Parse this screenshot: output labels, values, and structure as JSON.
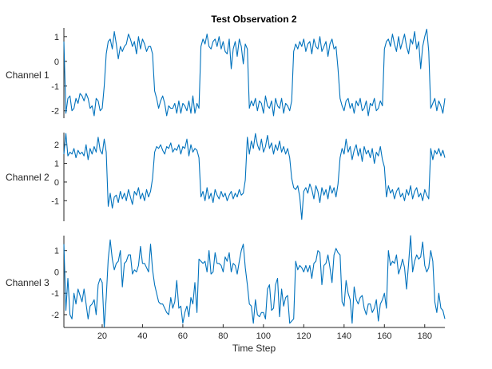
{
  "chart_data": {
    "type": "line",
    "title": "Test Observation 2",
    "xlabel": "Time Step",
    "xlim": [
      1,
      190
    ],
    "xticks": [
      20,
      40,
      60,
      80,
      100,
      120,
      140,
      160,
      180
    ],
    "grid": false,
    "line_color": "#0072BD",
    "x_start": 1,
    "series": [
      {
        "name": "Channel 1",
        "ylim": [
          -2.3,
          1.35
        ],
        "yticks": [
          -2,
          -1,
          0,
          1
        ],
        "values": [
          0.8,
          -2.1,
          -1.5,
          -1.4,
          -2.0,
          -1.9,
          -1.5,
          -1.7,
          -1.3,
          -1.4,
          -1.6,
          -1.3,
          -1.5,
          -1.9,
          -1.8,
          -2.2,
          -1.5,
          -1.6,
          -2.0,
          -1.9,
          -1.0,
          0.3,
          0.8,
          0.9,
          0.5,
          1.2,
          0.7,
          0.1,
          0.6,
          0.4,
          0.6,
          0.7,
          1.1,
          0.9,
          0.6,
          0.8,
          0.3,
          1.0,
          0.5,
          0.9,
          0.7,
          0.4,
          0.6,
          0.6,
          0.3,
          -1.2,
          -1.5,
          -1.9,
          -1.6,
          -1.4,
          -1.7,
          -2.2,
          -1.8,
          -1.9,
          -1.9,
          -1.7,
          -2.1,
          -1.6,
          -2.1,
          -1.7,
          -1.8,
          -2.0,
          -1.6,
          -2.1,
          -1.4,
          -2.1,
          -1.7,
          -1.9,
          0.6,
          0.9,
          0.7,
          1.1,
          0.6,
          0.5,
          0.8,
          0.9,
          0.6,
          1.0,
          0.5,
          0.8,
          0.4,
          0.3,
          0.9,
          -0.3,
          0.5,
          0.8,
          0.2,
          0.9,
          0.6,
          -0.1,
          0.7,
          0.5,
          -1.9,
          -1.6,
          -1.8,
          -1.5,
          -2.0,
          -1.6,
          -1.7,
          -2.1,
          -1.4,
          -1.8,
          -1.9,
          -1.6,
          -2.2,
          -1.5,
          -1.8,
          -1.9,
          -1.5,
          -2.1,
          -1.7,
          -1.8,
          -2.0,
          -1.6,
          0.4,
          0.7,
          0.5,
          0.8,
          0.6,
          0.9,
          0.4,
          0.7,
          0.8,
          0.3,
          0.9,
          0.6,
          0.5,
          1.0,
          0.4,
          0.6,
          0.8,
          0.2,
          0.7,
          0.9,
          0.5,
          0.6,
          -0.3,
          -1.5,
          -1.8,
          -2.0,
          -1.6,
          -1.5,
          -1.9,
          -1.7,
          -2.1,
          -1.6,
          -1.8,
          -1.5,
          -2.0,
          -1.9,
          -1.6,
          -2.2,
          -1.7,
          -1.8,
          -1.5,
          -2.0,
          -1.9,
          -1.6,
          -1.8,
          0.5,
          0.8,
          0.9,
          0.6,
          1.1,
          0.7,
          0.4,
          1.0,
          0.5,
          0.8,
          1.1,
          0.6,
          0.3,
          0.9,
          0.7,
          1.2,
          0.5,
          0.8,
          -0.3,
          0.6,
          1.0,
          1.3,
          0.4,
          -1.9,
          -1.7,
          -1.5,
          -2.0,
          -1.6,
          -1.8,
          -2.1,
          -1.5
        ]
      },
      {
        "name": "Channel 2",
        "ylim": [
          -2.1,
          2.65
        ],
        "yticks": [
          -1,
          0,
          1,
          2
        ],
        "values": [
          1.5,
          2.6,
          1.4,
          1.6,
          1.5,
          1.8,
          1.3,
          1.7,
          1.5,
          1.6,
          1.4,
          2.0,
          1.2,
          1.8,
          1.5,
          1.9,
          1.6,
          2.4,
          1.7,
          1.5,
          2.3,
          1.6,
          -1.3,
          -0.6,
          -1.4,
          -0.8,
          -0.7,
          -1.1,
          -0.5,
          -0.9,
          -0.6,
          -1.0,
          -0.4,
          -0.8,
          -1.2,
          -0.5,
          -0.7,
          -0.3,
          -0.9,
          -0.6,
          -1.0,
          -0.4,
          -0.8,
          -0.5,
          0.2,
          1.6,
          1.9,
          1.8,
          2.0,
          1.7,
          1.5,
          1.9,
          1.8,
          2.1,
          1.6,
          1.8,
          1.7,
          2.0,
          1.5,
          1.9,
          1.8,
          2.3,
          1.4,
          2.0,
          1.6,
          1.8,
          1.7,
          1.3,
          -0.8,
          -0.5,
          -1.0,
          -0.3,
          -0.9,
          -0.6,
          -1.1,
          -0.4,
          -0.7,
          -0.9,
          -0.5,
          -0.8,
          -0.6,
          -1.0,
          -0.7,
          -0.5,
          -0.9,
          -0.6,
          -0.8,
          -0.4,
          -0.7,
          -0.6,
          0.1,
          2.4,
          1.5,
          2.2,
          1.8,
          2.6,
          2.0,
          1.7,
          2.3,
          1.6,
          1.9,
          2.5,
          1.8,
          2.1,
          1.5,
          2.0,
          1.7,
          2.2,
          1.6,
          1.9,
          1.5,
          1.8,
          1.3,
          0.2,
          -0.3,
          -0.4,
          -0.2,
          -0.8,
          -2.0,
          -0.5,
          -0.3,
          -0.6,
          -0.1,
          -0.4,
          -0.9,
          -0.2,
          -0.5,
          -1.1,
          -0.3,
          -0.7,
          -0.4,
          -0.9,
          -0.2,
          -0.6,
          -0.3,
          -0.8,
          -0.1,
          1.3,
          1.8,
          1.5,
          2.3,
          1.6,
          1.9,
          1.2,
          1.7,
          2.0,
          1.4,
          1.8,
          1.1,
          1.9,
          1.5,
          1.7,
          1.3,
          1.8,
          1.0,
          1.6,
          1.4,
          1.9,
          1.2,
          0.8,
          -0.8,
          -0.2,
          -0.6,
          -0.4,
          -0.9,
          -0.5,
          -0.3,
          -0.8,
          -0.6,
          -1.0,
          -0.4,
          -0.7,
          -0.2,
          -0.9,
          -0.5,
          -0.3,
          -0.8,
          -0.6,
          -1.0,
          -0.4,
          -0.7,
          -0.9,
          1.8,
          1.2,
          1.7,
          1.5,
          1.8,
          1.4,
          1.7,
          1.3
        ]
      },
      {
        "name": "Channel 3",
        "ylim": [
          -2.6,
          1.7
        ],
        "yticks": [
          -2,
          -1,
          0,
          1
        ],
        "values": [
          1.3,
          -1.8,
          -0.3,
          -2.0,
          -2.2,
          -1.0,
          -1.5,
          -0.8,
          -1.1,
          -1.4,
          -0.8,
          -1.5,
          -2.2,
          -1.6,
          -1.5,
          -1.3,
          -2.0,
          -0.6,
          -0.3,
          -0.5,
          -2.6,
          -1.2,
          0.6,
          1.5,
          0.6,
          0.1,
          0.4,
          0.5,
          1.0,
          -0.7,
          0.4,
          0.5,
          0.8,
          0.8,
          -0.1,
          0.1,
          0.0,
          0.3,
          1.2,
          0.4,
          0.4,
          0.2,
          0.0,
          1.3,
          0.1,
          -0.6,
          -1.0,
          -1.4,
          -1.5,
          -1.5,
          -1.7,
          -1.9,
          -2.0,
          -1.2,
          -1.7,
          -1.4,
          -0.4,
          -1.7,
          -1.6,
          -2.4,
          -1.9,
          -1.6,
          -2.1,
          -1.2,
          -1.5,
          -0.5,
          -1.9,
          0.6,
          0.5,
          0.4,
          0.5,
          0.0,
          1.0,
          -0.1,
          0.0,
          0.9,
          0.4,
          0.4,
          0.3,
          0.0,
          0.7,
          0.5,
          0.9,
          0.0,
          0.4,
          0.3,
          -0.1,
          0.5,
          1.0,
          1.3,
          0.2,
          -0.6,
          -1.5,
          -1.6,
          -2.4,
          -1.3,
          -2.0,
          -2.1,
          -1.9,
          -1.9,
          -2.2,
          -0.8,
          -0.6,
          -1.8,
          -1.7,
          -0.6,
          -0.3,
          -2.1,
          -0.8,
          -1.6,
          -1.2,
          -1.1,
          -2.4,
          -2.3,
          -2.2,
          0.5,
          0.1,
          0.3,
          0.2,
          0.0,
          0.3,
          0.0,
          0.3,
          -0.3,
          0.4,
          0.5,
          1.0,
          0.9,
          -0.6,
          0.3,
          0.4,
          0.8,
          0.2,
          -0.5,
          0.8,
          1.1,
          0.9,
          0.8,
          -1.4,
          -1.6,
          -0.4,
          -1.0,
          -1.3,
          -2.4,
          -0.7,
          -1.3,
          -1.5,
          -1.2,
          -1.1,
          -1.7,
          -2.0,
          -1.5,
          -1.5,
          -1.9,
          -1.7,
          -1.3,
          -2.3,
          -1.5,
          -1.3,
          -1.0,
          -1.7,
          1.0,
          0.3,
          0.5,
          0.4,
          0.8,
          -0.1,
          0.2,
          0.6,
          0.2,
          -0.8,
          0.4,
          1.7,
          0.0,
          0.5,
          0.8,
          0.6,
          0.7,
          1.4,
          0.3,
          0.0,
          0.2,
          1.0,
          0.5,
          -1.4,
          -1.9,
          -1.0,
          -1.7,
          -1.8,
          -2.2
        ]
      }
    ]
  }
}
